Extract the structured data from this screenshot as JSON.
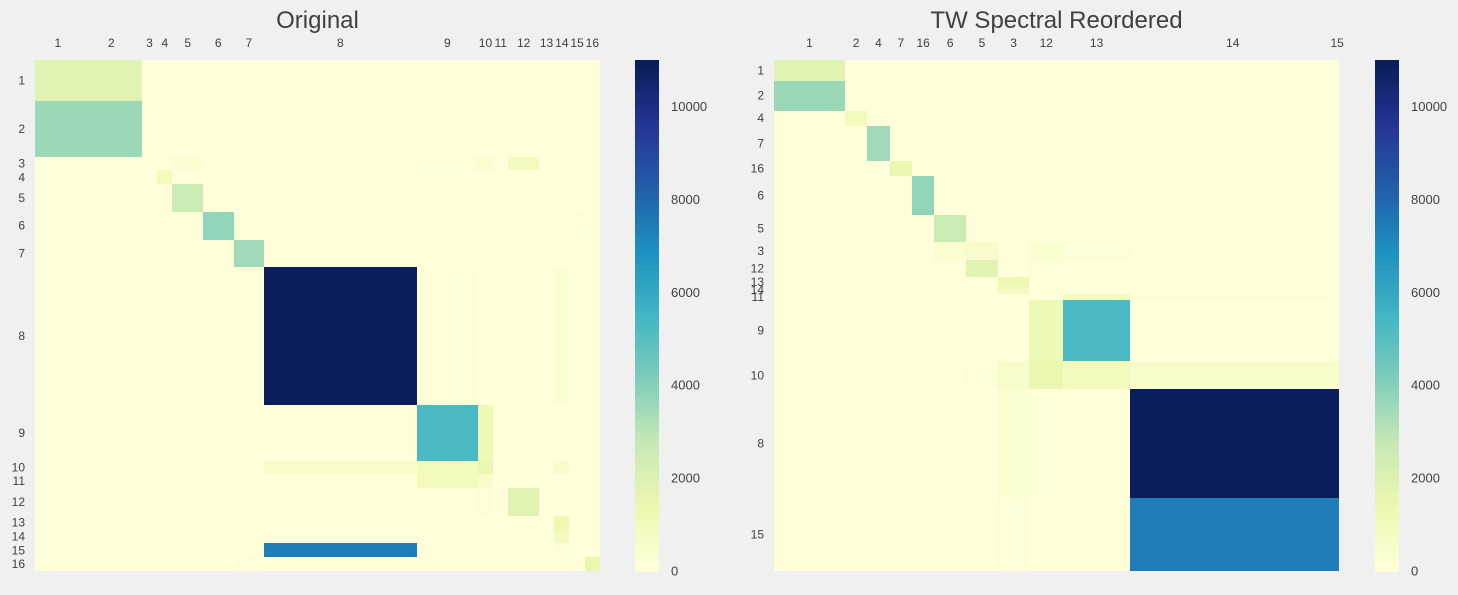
{
  "chart_data": [
    {
      "type": "heatmap",
      "title": "Original",
      "x_labels": [
        "1",
        "2",
        "3",
        "4",
        "5",
        "6",
        "7",
        "8",
        "9",
        "10",
        "11",
        "12",
        "13",
        "14",
        "15",
        "16"
      ],
      "y_labels": [
        "1",
        "2",
        "3",
        "4",
        "5",
        "6",
        "7",
        "8",
        "9",
        "10",
        "11",
        "12",
        "13",
        "14",
        "15",
        "16"
      ],
      "block_sizes": [
        3,
        4,
        1,
        1,
        2,
        2,
        2,
        10,
        4,
        1,
        1,
        2,
        1,
        1,
        1,
        1
      ],
      "cells": [
        {
          "r": 1,
          "c": 1,
          "v": 1800
        },
        {
          "r": 1,
          "c": 2,
          "v": 1800
        },
        {
          "r": 2,
          "c": 1,
          "v": 3600
        },
        {
          "r": 2,
          "c": 2,
          "v": 3600
        },
        {
          "r": 3,
          "c": 5,
          "v": 300
        },
        {
          "r": 3,
          "c": 9,
          "v": 150
        },
        {
          "r": 3,
          "c": 10,
          "v": 400
        },
        {
          "r": 3,
          "c": 12,
          "v": 900
        },
        {
          "r": 4,
          "c": 4,
          "v": 1000
        },
        {
          "r": 5,
          "c": 5,
          "v": 2600
        },
        {
          "r": 6,
          "c": 6,
          "v": 3800
        },
        {
          "r": 6,
          "c": 15,
          "v": 100
        },
        {
          "r": 7,
          "c": 7,
          "v": 3500
        },
        {
          "r": 8,
          "c": 8,
          "v": 10950
        },
        {
          "r": 8,
          "c": 9,
          "v": 100
        },
        {
          "r": 8,
          "c": 14,
          "v": 250
        },
        {
          "r": 9,
          "c": 9,
          "v": 5300
        },
        {
          "r": 9,
          "c": 10,
          "v": 1200
        },
        {
          "r": 10,
          "c": 8,
          "v": 600
        },
        {
          "r": 10,
          "c": 9,
          "v": 1000
        },
        {
          "r": 10,
          "c": 10,
          "v": 1500
        },
        {
          "r": 10,
          "c": 14,
          "v": 500
        },
        {
          "r": 11,
          "c": 9,
          "v": 1000
        },
        {
          "r": 11,
          "c": 10,
          "v": 600
        },
        {
          "r": 12,
          "c": 10,
          "v": 100
        },
        {
          "r": 12,
          "c": 12,
          "v": 1800
        },
        {
          "r": 13,
          "c": 11,
          "v": 80
        },
        {
          "r": 13,
          "c": 14,
          "v": 1300
        },
        {
          "r": 14,
          "c": 14,
          "v": 900
        },
        {
          "r": 15,
          "c": 8,
          "v": 7400
        },
        {
          "r": 15,
          "c": 14,
          "v": 150
        },
        {
          "r": 16,
          "c": 7,
          "v": 100
        },
        {
          "r": 16,
          "c": 16,
          "v": 1500
        }
      ],
      "colorbar": {
        "min": 0,
        "max": 11000,
        "ticks": [
          0,
          2000,
          4000,
          6000,
          8000,
          10000
        ],
        "colormap": "YlGnBu"
      }
    },
    {
      "type": "heatmap",
      "title": "TW Spectral Reordered",
      "x_labels": [
        "1",
        "2",
        "4",
        "7",
        "16",
        "6",
        "5",
        "3",
        "12",
        "13",
        "14",
        "15"
      ],
      "y_labels": [
        "1",
        "2",
        "4",
        "7",
        "16",
        "6",
        "5",
        "3",
        "12",
        "13",
        "14",
        "11",
        "9",
        "10",
        "8",
        "15"
      ],
      "col_sizes": [
        3.8,
        1.2,
        1.2,
        1.2,
        1.2,
        1.7,
        1.7,
        1.7,
        1.8,
        3.6,
        11,
        0.2
      ],
      "row_sizes": [
        1.1,
        1.6,
        0.8,
        1.9,
        0.8,
        2.1,
        1.4,
        1,
        0.9,
        0.5,
        0.4,
        0.3,
        3.3,
        1.5,
        5.8,
        3.9
      ],
      "cells": [
        {
          "r": 1,
          "c": 1,
          "v": 1800
        },
        {
          "r": 2,
          "c": 1,
          "v": 3600
        },
        {
          "r": 3,
          "c": 2,
          "v": 1000
        },
        {
          "r": 4,
          "c": 3,
          "v": 3500
        },
        {
          "r": 5,
          "c": 4,
          "v": 1500
        },
        {
          "r": 6,
          "c": 5,
          "v": 3800
        },
        {
          "r": 7,
          "c": 6,
          "v": 2600
        },
        {
          "r": 8,
          "c": 6,
          "v": 300
        },
        {
          "r": 8,
          "c": 7,
          "v": 500
        },
        {
          "r": 8,
          "c": 9,
          "v": 400
        },
        {
          "r": 8,
          "c": 10,
          "v": 100
        },
        {
          "r": 9,
          "c": 7,
          "v": 1800
        },
        {
          "r": 9,
          "c": 9,
          "v": 100
        },
        {
          "r": 10,
          "c": 8,
          "v": 1300
        },
        {
          "r": 11,
          "c": 8,
          "v": 900
        },
        {
          "r": 12,
          "c": 10,
          "v": 1000
        },
        {
          "r": 12,
          "c": 11,
          "v": 150
        },
        {
          "r": 13,
          "c": 9,
          "v": 1200
        },
        {
          "r": 13,
          "c": 10,
          "v": 5300
        },
        {
          "r": 14,
          "c": 7,
          "v": 150
        },
        {
          "r": 14,
          "c": 8,
          "v": 500
        },
        {
          "r": 14,
          "c": 9,
          "v": 1500
        },
        {
          "r": 14,
          "c": 10,
          "v": 1000
        },
        {
          "r": 14,
          "c": 11,
          "v": 600
        },
        {
          "r": 14,
          "c": 12,
          "v": 600
        },
        {
          "r": 15,
          "c": 8,
          "v": 250
        },
        {
          "r": 15,
          "c": 9,
          "v": 100
        },
        {
          "r": 15,
          "c": 11,
          "v": 10950
        },
        {
          "r": 15,
          "c": 12,
          "v": 10950
        },
        {
          "r": 16,
          "c": 8,
          "v": 150
        },
        {
          "r": 16,
          "c": 11,
          "v": 7400
        },
        {
          "r": 16,
          "c": 12,
          "v": 7400
        }
      ],
      "colorbar": {
        "min": 0,
        "max": 11000,
        "ticks": [
          0,
          2000,
          4000,
          6000,
          8000,
          10000
        ],
        "colormap": "YlGnBu"
      }
    }
  ]
}
